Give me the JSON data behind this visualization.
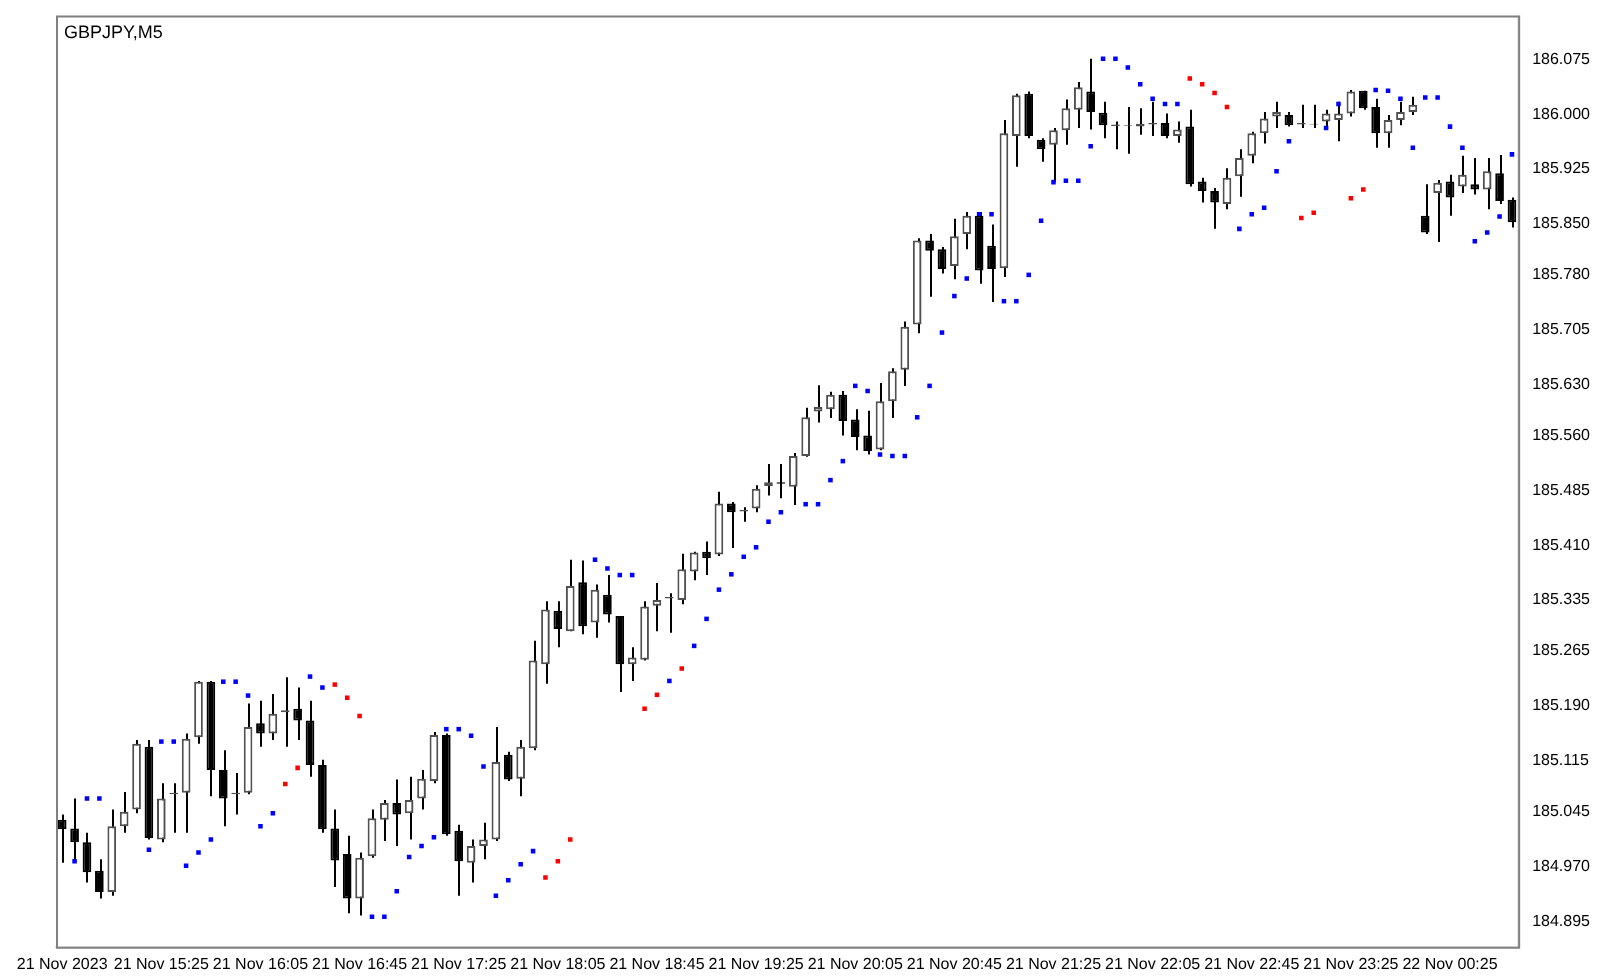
{
  "chart_data": {
    "type": "candlestick",
    "title": "GBPJPY,M5",
    "categories": [
      "21 Nov 2023",
      null,
      null,
      null,
      null,
      null,
      null,
      null,
      "21 Nov 15:25",
      null,
      null,
      null,
      null,
      null,
      null,
      null,
      "21 Nov 16:05",
      null,
      null,
      null,
      null,
      null,
      null,
      null,
      "21 Nov 16:45",
      null,
      null,
      null,
      null,
      null,
      null,
      null,
      "21 Nov 17:25",
      null,
      null,
      null,
      null,
      null,
      null,
      null,
      "21 Nov 18:05",
      null,
      null,
      null,
      null,
      null,
      null,
      null,
      "21 Nov 18:45",
      null,
      null,
      null,
      null,
      null,
      null,
      null,
      "21 Nov 19:25",
      null,
      null,
      null,
      null,
      null,
      null,
      null,
      "21 Nov 20:05",
      null,
      null,
      null,
      null,
      null,
      null,
      null,
      "21 Nov 20:45",
      null,
      null,
      null,
      null,
      null,
      null,
      null,
      "21 Nov 21:25",
      null,
      null,
      null,
      null,
      null,
      null,
      null,
      "21 Nov 22:05",
      null,
      null,
      null,
      null,
      null,
      null,
      null,
      "21 Nov 22:45",
      null,
      null,
      null,
      null,
      null,
      null,
      null,
      "21 Nov 23:25",
      null,
      null,
      null,
      null,
      null,
      null,
      null,
      "22 Nov 00:25",
      null,
      null,
      null,
      null,
      null
    ],
    "ohlc": [
      [
        185.034,
        185.041,
        184.975,
        185.021
      ],
      [
        185.022,
        185.063,
        184.98,
        185.003
      ],
      [
        185.003,
        185.016,
        184.948,
        184.962
      ],
      [
        184.964,
        184.98,
        184.926,
        184.935
      ],
      [
        184.935,
        185.048,
        184.93,
        185.025
      ],
      [
        185.025,
        185.072,
        185.016,
        185.045
      ],
      [
        185.048,
        185.143,
        185.043,
        185.138
      ],
      [
        185.134,
        185.143,
        185.007,
        185.009
      ],
      [
        185.007,
        185.084,
        185.003,
        185.063
      ],
      [
        185.069,
        185.084,
        185.016,
        185.071
      ],
      [
        185.071,
        185.152,
        185.016,
        185.145
      ],
      [
        185.147,
        185.224,
        185.138,
        185.223
      ],
      [
        185.223,
        185.224,
        185.066,
        185.102
      ],
      [
        185.102,
        185.129,
        185.025,
        185.063
      ],
      [
        185.069,
        185.098,
        185.041,
        185.071
      ],
      [
        185.071,
        185.193,
        185.069,
        185.161
      ],
      [
        185.166,
        185.197,
        185.134,
        185.152
      ],
      [
        185.152,
        185.206,
        185.143,
        185.179
      ],
      [
        185.181,
        185.229,
        185.134,
        185.184
      ],
      [
        185.186,
        185.215,
        185.143,
        185.17
      ],
      [
        185.17,
        185.197,
        185.093,
        185.109
      ],
      [
        185.109,
        185.116,
        185.016,
        185.021
      ],
      [
        185.022,
        185.048,
        184.942,
        184.978
      ],
      [
        184.987,
        185.012,
        184.906,
        184.926
      ],
      [
        184.926,
        184.989,
        184.903,
        184.982
      ],
      [
        184.984,
        185.048,
        184.982,
        185.036
      ],
      [
        185.034,
        185.061,
        185.005,
        185.057
      ],
      [
        185.057,
        185.089,
        184.998,
        185.041
      ],
      [
        185.043,
        185.093,
        185.007,
        185.061
      ],
      [
        185.063,
        185.102,
        185.048,
        185.09
      ],
      [
        185.087,
        185.154,
        185.084,
        185.15
      ],
      [
        185.15,
        185.152,
        185.012,
        185.014
      ],
      [
        185.019,
        185.027,
        184.93,
        184.977
      ],
      [
        184.975,
        185.007,
        184.948,
        184.998
      ],
      [
        184.998,
        185.03,
        184.98,
        185.007
      ],
      [
        185.007,
        185.161,
        185.005,
        185.113
      ],
      [
        185.123,
        185.127,
        185.087,
        185.089
      ],
      [
        185.09,
        185.143,
        185.066,
        185.134
      ],
      [
        185.132,
        185.279,
        185.129,
        185.252
      ],
      [
        185.247,
        185.333,
        185.22,
        185.322
      ],
      [
        185.32,
        185.333,
        185.27,
        185.295
      ],
      [
        185.292,
        185.39,
        185.292,
        185.354
      ],
      [
        185.359,
        185.389,
        185.288,
        185.299
      ],
      [
        185.304,
        185.356,
        185.283,
        185.349
      ],
      [
        185.342,
        185.369,
        185.304,
        185.315
      ],
      [
        185.313,
        185.313,
        185.209,
        185.247
      ],
      [
        185.247,
        185.27,
        185.224,
        185.256
      ],
      [
        185.253,
        185.333,
        185.252,
        185.326
      ],
      [
        185.327,
        185.358,
        185.292,
        185.335
      ],
      [
        185.337,
        185.344,
        185.29,
        185.339
      ],
      [
        185.335,
        185.398,
        185.329,
        185.377
      ],
      [
        185.374,
        185.401,
        185.362,
        185.4
      ],
      [
        185.401,
        185.415,
        185.369,
        185.392
      ],
      [
        185.397,
        185.483,
        185.395,
        185.467
      ],
      [
        185.467,
        185.469,
        185.406,
        185.455
      ],
      [
        185.456,
        185.462,
        185.442,
        185.458
      ],
      [
        185.46,
        185.492,
        185.455,
        185.487
      ],
      [
        185.491,
        185.521,
        185.478,
        185.496
      ],
      [
        185.496,
        185.521,
        185.474,
        185.494
      ],
      [
        185.49,
        185.536,
        185.465,
        185.532
      ],
      [
        185.532,
        185.598,
        185.531,
        185.585
      ],
      [
        185.593,
        185.629,
        185.578,
        185.599
      ],
      [
        185.596,
        185.62,
        185.584,
        185.616
      ],
      [
        185.616,
        185.621,
        185.56,
        185.58
      ],
      [
        185.582,
        185.596,
        185.54,
        185.558
      ],
      [
        185.56,
        185.594,
        185.534,
        185.539
      ],
      [
        185.541,
        185.632,
        185.54,
        185.607
      ],
      [
        185.607,
        185.652,
        185.584,
        185.648
      ],
      [
        185.65,
        185.716,
        185.628,
        185.709
      ],
      [
        185.712,
        185.83,
        185.7,
        185.827
      ],
      [
        185.827,
        185.836,
        185.75,
        185.813
      ],
      [
        185.815,
        185.818,
        185.782,
        185.788
      ],
      [
        185.792,
        185.857,
        185.774,
        185.833
      ],
      [
        185.836,
        185.866,
        185.815,
        185.861
      ],
      [
        185.861,
        185.866,
        185.768,
        185.786
      ],
      [
        185.82,
        185.849,
        185.743,
        185.788
      ],
      [
        185.789,
        185.992,
        185.777,
        185.974
      ],
      [
        185.97,
        186.028,
        185.928,
        186.026
      ],
      [
        186.028,
        186.031,
        185.967,
        185.97
      ],
      [
        185.965,
        185.967,
        185.935,
        185.952
      ],
      [
        185.958,
        185.981,
        185.907,
        185.978
      ],
      [
        185.978,
        186.02,
        185.958,
        186.008
      ],
      [
        186.006,
        186.044,
        185.981,
        186.037
      ],
      [
        186.031,
        186.076,
        185.979,
        186.003
      ],
      [
        186.002,
        186.017,
        185.967,
        185.985
      ],
      [
        185.984,
        185.99,
        185.952,
        185.986
      ],
      [
        185.984,
        186.01,
        185.946,
        185.985
      ],
      [
        185.983,
        186.008,
        185.972,
        185.987
      ],
      [
        185.986,
        186.017,
        185.97,
        185.988
      ],
      [
        185.988,
        186.001,
        185.967,
        185.97
      ],
      [
        185.97,
        185.99,
        185.961,
        185.979
      ],
      [
        185.983,
        186.006,
        185.901,
        185.904
      ],
      [
        185.908,
        185.913,
        185.879,
        185.895
      ],
      [
        185.895,
        185.899,
        185.843,
        185.879
      ],
      [
        185.877,
        185.926,
        185.87,
        185.913
      ],
      [
        185.915,
        185.952,
        185.887,
        185.94
      ],
      [
        185.943,
        185.976,
        185.933,
        185.974
      ],
      [
        185.974,
        186.003,
        185.96,
        185.994
      ],
      [
        185.997,
        186.017,
        185.981,
        186.003
      ],
      [
        185.999,
        186.003,
        185.983,
        185.985
      ],
      [
        185.986,
        186.013,
        185.981,
        185.988
      ],
      [
        185.987,
        186.013,
        185.981,
        185.986
      ],
      [
        185.99,
        186.006,
        185.981,
        186.001
      ],
      [
        185.992,
        186.017,
        185.963,
        186.001
      ],
      [
        186.001,
        186.033,
        185.997,
        186.031
      ],
      [
        186.032,
        186.032,
        186.006,
        186.008
      ],
      [
        186.01,
        186.021,
        185.954,
        185.974
      ],
      [
        185.974,
        185.999,
        185.954,
        185.992
      ],
      [
        185.992,
        186.017,
        185.985,
        186.003
      ],
      [
        186.003,
        186.024,
        185.999,
        186.013
      ],
      [
        185.861,
        185.904,
        185.836,
        185.838
      ],
      [
        185.892,
        185.91,
        185.825,
        185.906
      ],
      [
        185.908,
        185.917,
        185.861,
        185.886
      ],
      [
        185.901,
        185.943,
        185.892,
        185.917
      ],
      [
        185.904,
        185.94,
        185.89,
        185.897
      ],
      [
        185.897,
        185.94,
        185.87,
        185.922
      ],
      [
        185.919,
        185.944,
        185.877,
        185.881
      ],
      [
        185.883,
        185.886,
        185.845,
        185.852
      ]
    ],
    "series": [
      {
        "type": "scatter",
        "color": "#0000ff",
        "values": [
          null,
          184.977,
          185.063,
          185.063,
          null,
          null,
          null,
          184.993,
          185.141,
          185.141,
          184.971,
          184.989,
          185.007,
          185.223,
          185.223,
          185.204,
          185.025,
          185.043,
          null,
          null,
          185.23,
          185.215,
          null,
          null,
          null,
          184.901,
          184.901,
          184.936,
          184.983,
          184.998,
          185.01,
          185.158,
          185.158,
          185.149,
          185.107,
          184.93,
          184.951,
          184.973,
          184.991,
          null,
          null,
          null,
          null,
          185.39,
          185.378,
          185.369,
          185.369,
          null,
          null,
          185.224,
          null,
          185.272,
          185.309,
          185.349,
          185.37,
          185.394,
          185.407,
          185.442,
          185.455,
          null,
          185.466,
          185.466,
          185.499,
          185.525,
          185.628,
          185.621,
          185.534,
          185.532,
          185.532,
          185.585,
          185.628,
          185.701,
          185.751,
          185.775,
          185.863,
          185.863,
          185.744,
          185.744,
          185.78,
          185.854,
          185.907,
          185.909,
          185.909,
          185.956,
          186.076,
          186.076,
          186.064,
          186.041,
          186.021,
          186.014,
          186.014,
          null,
          null,
          null,
          null,
          185.843,
          185.863,
          185.872,
          185.922,
          185.963,
          null,
          null,
          185.981,
          186.014,
          null,
          null,
          186.033,
          186.032,
          186.021,
          185.954,
          186.023,
          186.023,
          185.983,
          185.954,
          185.826,
          185.838,
          185.86,
          185.945
        ]
      },
      {
        "type": "scatter",
        "color": "#ff0000",
        "values": [
          null,
          null,
          null,
          null,
          null,
          null,
          null,
          null,
          null,
          null,
          null,
          null,
          null,
          null,
          null,
          null,
          null,
          null,
          185.083,
          185.105,
          null,
          null,
          185.219,
          185.201,
          185.176,
          null,
          null,
          null,
          null,
          null,
          null,
          null,
          null,
          null,
          null,
          null,
          null,
          null,
          null,
          184.955,
          184.977,
          185.007,
          null,
          null,
          null,
          null,
          null,
          185.186,
          185.205,
          null,
          185.241,
          null,
          null,
          null,
          null,
          null,
          null,
          null,
          null,
          null,
          null,
          null,
          null,
          null,
          null,
          null,
          null,
          null,
          null,
          null,
          null,
          null,
          null,
          null,
          null,
          null,
          null,
          null,
          null,
          null,
          null,
          null,
          null,
          null,
          null,
          null,
          null,
          null,
          null,
          null,
          null,
          186.049,
          186.041,
          186.029,
          186.01,
          null,
          null,
          null,
          null,
          null,
          185.858,
          185.865,
          null,
          null,
          185.885,
          185.897,
          null,
          null,
          null,
          null,
          null,
          null,
          null,
          null,
          null,
          null,
          null,
          null
        ]
      }
    ],
    "marker": "square",
    "ylim": [
      184.86,
      186.135
    ],
    "yticks": [
      {
        "value": 184.895,
        "label": "184.895"
      },
      {
        "value": 184.97,
        "label": "184.970"
      },
      {
        "value": 185.045,
        "label": "185.045"
      },
      {
        "value": 185.115,
        "label": "185.115"
      },
      {
        "value": 185.19,
        "label": "185.190"
      },
      {
        "value": 185.265,
        "label": "185.265"
      },
      {
        "value": 185.335,
        "label": "185.335"
      },
      {
        "value": 185.41,
        "label": "185.410"
      },
      {
        "value": 185.485,
        "label": "185.485"
      },
      {
        "value": 185.56,
        "label": "185.560"
      },
      {
        "value": 185.63,
        "label": "185.630"
      },
      {
        "value": 185.705,
        "label": "185.705"
      },
      {
        "value": 185.78,
        "label": "185.780"
      },
      {
        "value": 185.85,
        "label": "185.850"
      },
      {
        "value": 185.925,
        "label": "185.925"
      },
      {
        "value": 186,
        "label": "186.000"
      },
      {
        "value": 186.075,
        "label": "186.075"
      }
    ]
  }
}
